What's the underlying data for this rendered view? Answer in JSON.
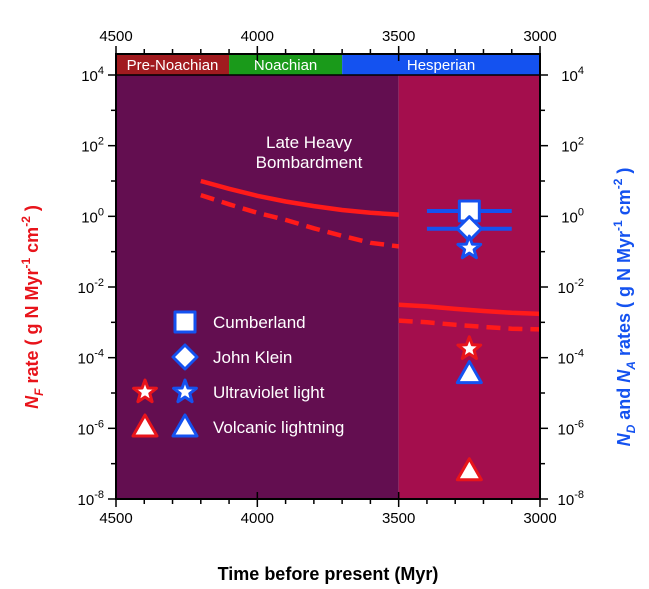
{
  "chart_data": {
    "type": "scatter",
    "xlabel": "Time before present (Myr)",
    "ylabel_left": {
      "sym": "N",
      "sub": "F",
      "rest": " rate ( g N Myr",
      "sup1": "-1",
      "mid": " cm",
      "sup2": "-2",
      "end": " )"
    },
    "ylabel_right": {
      "p1": "N",
      "sub1": "D",
      "p2": " and ",
      "p3": "N",
      "sub2": "A",
      "p4": " rates ( g N Myr",
      "sup1": "-1",
      "p5": " cm",
      "sup2": "-2",
      "p6": " )"
    },
    "x_axis": {
      "reversed": true,
      "xlim": [
        4500,
        3000
      ],
      "ticks": [
        "4500",
        "4000",
        "3500",
        "3000"
      ]
    },
    "y_axis": {
      "scale": "log",
      "ylim_exp": [
        -8,
        4
      ],
      "tick_base": "10",
      "tick_exps": [
        "4",
        "2",
        "0",
        "-2",
        "-4",
        "-6",
        "-8"
      ]
    },
    "periods": [
      {
        "name": "Pre-Noachian",
        "start": 4500,
        "end": 4100,
        "color": "#A11B1F"
      },
      {
        "name": "Noachian",
        "start": 4100,
        "end": 3700,
        "color": "#1A9A1A"
      },
      {
        "name": "Hesperian",
        "start": 3700,
        "end": 3000,
        "color": "#1452F0"
      }
    ],
    "shaded_regions": [
      {
        "start": 4500,
        "end": 3500,
        "color": "#630E50"
      },
      {
        "start": 3500,
        "end": 3000,
        "color": "#A40E4D"
      }
    ],
    "annotation": {
      "lines": [
        "Late Heavy",
        "Bombardment"
      ],
      "x": 4000,
      "y_exp": 2
    },
    "series": [
      {
        "style": "solid",
        "x": [
          4200,
          4100,
          4000,
          3900,
          3800,
          3700,
          3600,
          3500
        ],
        "y_exp": [
          1.0,
          0.78,
          0.58,
          0.42,
          0.29,
          0.18,
          0.1,
          0.05
        ]
      },
      {
        "style": "dashed",
        "x": [
          4200,
          4100,
          4000,
          3900,
          3800,
          3700,
          3600,
          3500
        ],
        "y_exp": [
          0.6,
          0.34,
          0.1,
          -0.1,
          -0.34,
          -0.55,
          -0.75,
          -0.85
        ]
      },
      {
        "style": "solid",
        "x": [
          3500,
          3400,
          3300,
          3200,
          3100,
          3000
        ],
        "y_exp": [
          -2.5,
          -2.55,
          -2.62,
          -2.68,
          -2.73,
          -2.76
        ]
      },
      {
        "style": "dashed",
        "x": [
          3500,
          3400,
          3300,
          3200,
          3100,
          3000
        ],
        "y_exp": [
          -2.95,
          -3.0,
          -3.07,
          -3.13,
          -3.18,
          -3.2
        ]
      }
    ],
    "points": [
      {
        "legend": "Cumberland",
        "marker": "square",
        "color": "#1452F0",
        "x": 3250,
        "y_exp": 0.15,
        "xerr": [
          3400,
          3100
        ]
      },
      {
        "legend": "John Klein",
        "marker": "diamond",
        "color": "#1452F0",
        "x": 3250,
        "y_exp": -0.35,
        "xerr": [
          3400,
          3100
        ]
      },
      {
        "legend": "Ultraviolet light",
        "marker": "star",
        "color": "#1452F0",
        "x": 3250,
        "y_exp": -0.9
      },
      {
        "legend": "Ultraviolet light",
        "marker": "star",
        "color": "#E8141B",
        "x": 3250,
        "y_exp": -3.75
      },
      {
        "legend": "Volcanic lightning",
        "marker": "triangle",
        "color": "#1452F0",
        "x": 3250,
        "y_exp": -4.45
      },
      {
        "legend": "Volcanic lightning",
        "marker": "triangle",
        "color": "#E8141B",
        "x": 3250,
        "y_exp": -7.2
      }
    ],
    "legend": [
      {
        "label": "Cumberland",
        "markers": [
          {
            "shape": "square",
            "color": "#1452F0"
          }
        ]
      },
      {
        "label": "John Klein",
        "markers": [
          {
            "shape": "diamond",
            "color": "#1452F0"
          }
        ]
      },
      {
        "label": "Ultraviolet light",
        "markers": [
          {
            "shape": "star",
            "color": "#E8141B"
          },
          {
            "shape": "star",
            "color": "#1452F0"
          }
        ]
      },
      {
        "label": "Volcanic lightning",
        "markers": [
          {
            "shape": "triangle",
            "color": "#E8141B"
          },
          {
            "shape": "triangle",
            "color": "#1452F0"
          }
        ]
      }
    ],
    "colors": {
      "line": "#FF1A1A",
      "left_label": "#E8141B",
      "right_label": "#1452F0"
    }
  }
}
